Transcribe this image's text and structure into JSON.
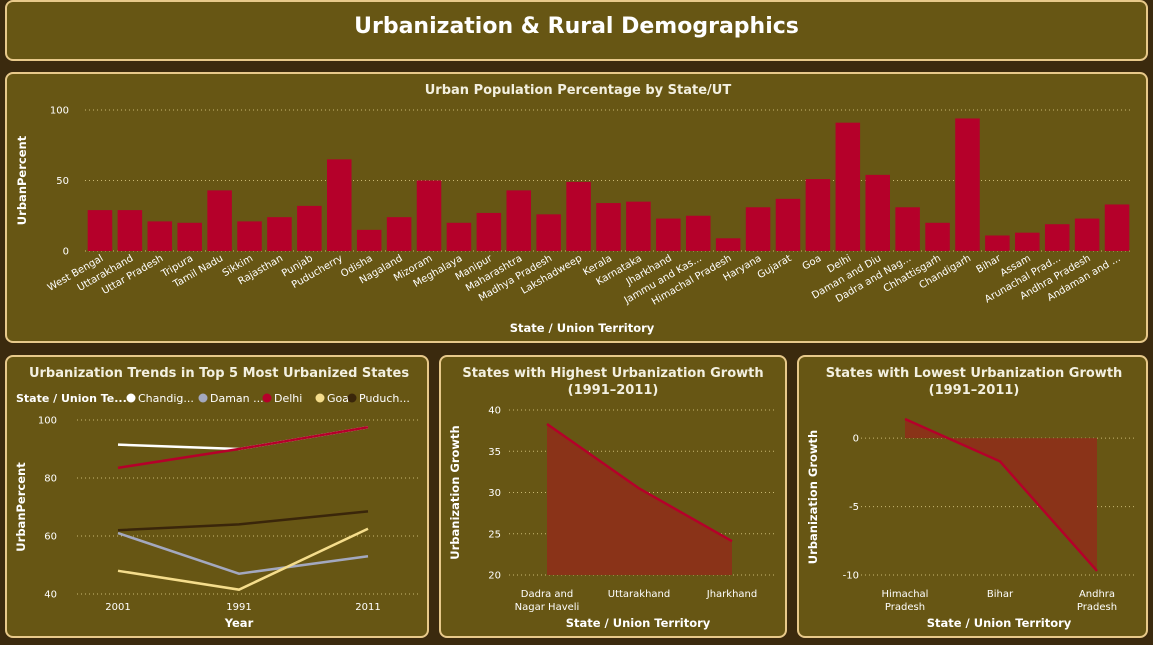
{
  "header": {
    "title": "Urbanization & Rural Demographics"
  },
  "chart_data": [
    {
      "type": "bar",
      "title": "Urban Population Percentage by State/UT",
      "xlabel": "State / Union Territory",
      "ylabel": "UrbanPercent",
      "ylim": [
        0,
        100
      ],
      "yticks": [
        0,
        50,
        100
      ],
      "grid": true,
      "color": "#b5002a",
      "categories": [
        "West Bengal",
        "Uttarakhand",
        "Uttar Pradesh",
        "Tripura",
        "Tamil Nadu",
        "Sikkim",
        "Rajasthan",
        "Punjab",
        "Puducherry",
        "Odisha",
        "Nagaland",
        "Mizoram",
        "Meghalaya",
        "Manipur",
        "Maharashtra",
        "Madhya Pradesh",
        "Lakshadweep",
        "Kerala",
        "Karnataka",
        "Jharkhand",
        "Jammu and Kas...",
        "Himachal Pradesh",
        "Haryana",
        "Gujarat",
        "Goa",
        "Delhi",
        "Daman and Diu",
        "Dadra and Nag...",
        "Chhattisgarh",
        "Chandigarh",
        "Bihar",
        "Assam",
        "Arunachal Prad...",
        "Andhra Pradesh",
        "Andaman and ..."
      ],
      "values": [
        29,
        29,
        21,
        20,
        43,
        21,
        24,
        32,
        65,
        15,
        24,
        50,
        20,
        27,
        43,
        26,
        49,
        34,
        35,
        23,
        25,
        9,
        31,
        37,
        51,
        91,
        54,
        31,
        20,
        94,
        11,
        13,
        19,
        23,
        33
      ]
    },
    {
      "type": "line",
      "title": "Urbanization Trends in Top 5 Most Urbanized States",
      "xlabel": "Year",
      "ylabel": "UrbanPercent",
      "legend_title": "State / Union Te...",
      "legend_position": "top",
      "categories": [
        "2001",
        "1991",
        "2011"
      ],
      "ylim": [
        40,
        100
      ],
      "yticks": [
        40,
        60,
        80,
        100
      ],
      "grid": true,
      "series": [
        {
          "name": "Chandig...",
          "color": "#ffffff",
          "values": [
            91.5,
            90,
            97.5
          ]
        },
        {
          "name": "Daman ...",
          "color": "#a3a8bf",
          "values": [
            61,
            47,
            53
          ]
        },
        {
          "name": "Delhi",
          "color": "#b5002a",
          "values": [
            83.5,
            90,
            97.5
          ]
        },
        {
          "name": "Goa",
          "color": "#f5dd8c",
          "values": [
            48,
            41.5,
            62.5
          ]
        },
        {
          "name": "Puduch...",
          "color": "#3a260a",
          "values": [
            62,
            64,
            68.5
          ]
        }
      ]
    },
    {
      "type": "area",
      "title": "States with Highest Urbanization Growth",
      "subtitle": "(1991–2011)",
      "xlabel": "State / Union Territory",
      "ylabel": "Urbanization Growth",
      "categories": [
        "Dadra and Nagar Haveli",
        "Uttarakhand",
        "Jharkhand"
      ],
      "category_lines": [
        [
          "Dadra and",
          "Nagar Haveli"
        ],
        [
          "Uttarakhand"
        ],
        [
          "Jharkhand"
        ]
      ],
      "values": [
        38.3,
        30.5,
        24.1
      ],
      "ylim": [
        20,
        40
      ],
      "yticks": [
        20,
        25,
        30,
        35,
        40
      ],
      "grid": true,
      "line_color": "#b5002a",
      "fill_color": "#8a3318"
    },
    {
      "type": "area",
      "title": "States with Lowest Urbanization Growth",
      "subtitle": "(1991–2011)",
      "xlabel": "State / Union Territory",
      "ylabel": "Urbanization Growth",
      "categories": [
        "Himachal Pradesh",
        "Bihar",
        "Andhra Pradesh"
      ],
      "category_lines": [
        [
          "Himachal",
          "Pradesh"
        ],
        [
          "Bihar"
        ],
        [
          "Andhra",
          "Pradesh"
        ]
      ],
      "values": [
        1.4,
        -1.7,
        -9.7
      ],
      "ylim": [
        -10,
        1.4
      ],
      "yticks": [
        -10,
        -5,
        0
      ],
      "grid": true,
      "line_color": "#b5002a",
      "fill_color": "#8a3318"
    }
  ]
}
